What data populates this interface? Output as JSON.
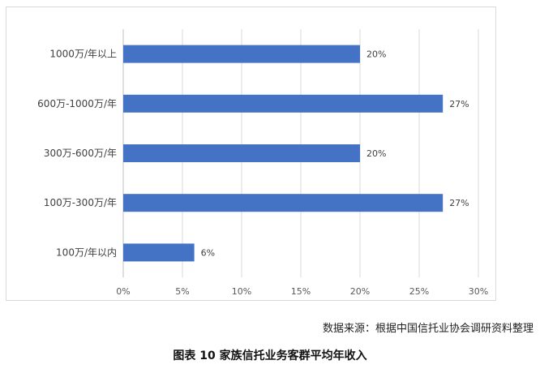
{
  "chart_data": {
    "type": "bar",
    "orientation": "horizontal",
    "categories": [
      "1000万/年以上",
      "600万-1000万/年",
      "300万-600万/年",
      "100万-300万/年",
      "100万/年以内"
    ],
    "values": [
      20,
      27,
      20,
      27,
      6
    ],
    "value_labels": [
      "20%",
      "27%",
      "20%",
      "27%",
      "6%"
    ],
    "xlim": [
      0,
      30
    ],
    "xticks": [
      0,
      5,
      10,
      15,
      20,
      25,
      30
    ],
    "xtick_labels": [
      "0%",
      "5%",
      "10%",
      "15%",
      "20%",
      "25%",
      "30%"
    ],
    "grid": "vertical",
    "legend": "none",
    "bar_color": "#4472c4"
  },
  "source_text": "数据来源：根据中国信托业协会调研资料整理",
  "caption_text": "图表  10  家族信托业务客群平均年收入"
}
